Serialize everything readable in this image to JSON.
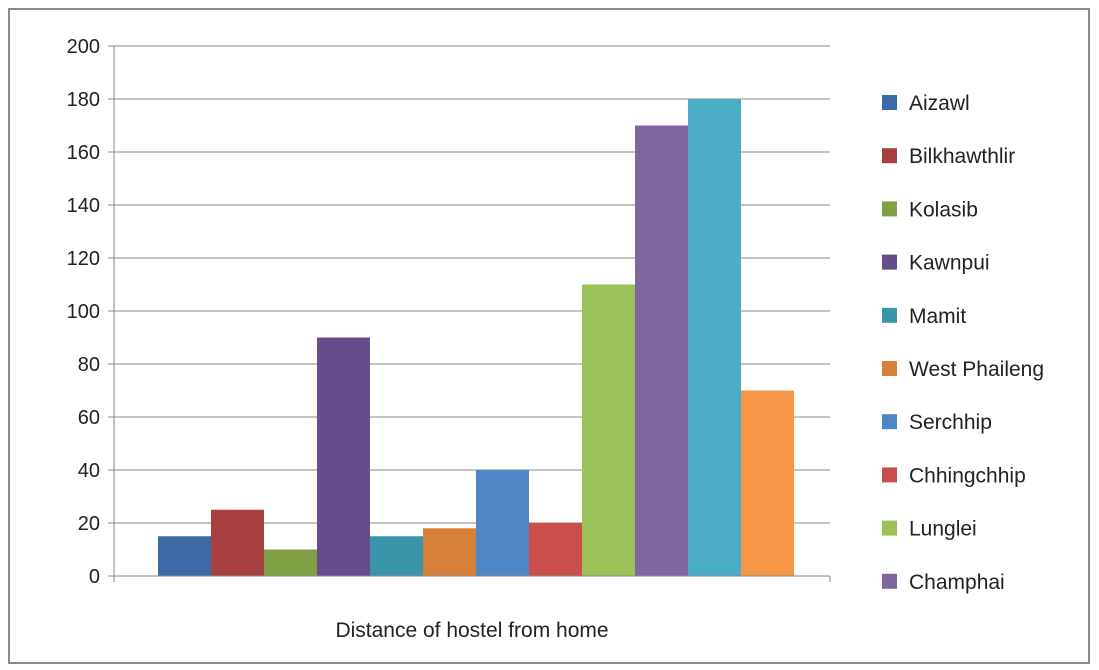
{
  "chart_data": {
    "type": "bar",
    "title": "",
    "xlabel": "Distance of hostel from home",
    "ylabel": "",
    "ylim": [
      0,
      200
    ],
    "yticks": [
      0,
      20,
      40,
      60,
      80,
      100,
      120,
      140,
      160,
      180,
      200
    ],
    "grid": true,
    "legend_position": "right",
    "series": [
      {
        "name": "Aizawl",
        "value": 15,
        "color": "#3c6aa6"
      },
      {
        "name": "Bilkhawthlir",
        "value": 25,
        "color": "#a7403e"
      },
      {
        "name": "Kolasib",
        "value": 10,
        "color": "#7fa045"
      },
      {
        "name": "Kawnpui",
        "value": 90,
        "color": "#674c8d"
      },
      {
        "name": "Mamit",
        "value": 15,
        "color": "#3a95ab"
      },
      {
        "name": "West Phaileng",
        "value": 18,
        "color": "#d6803a"
      },
      {
        "name": "Serchhip",
        "value": 40,
        "color": "#4f86c6"
      },
      {
        "name": "Chhingchhip",
        "value": 20,
        "color": "#cc4e4b"
      },
      {
        "name": "Lunglei",
        "value": 110,
        "color": "#9bc158"
      },
      {
        "name": "Champhai",
        "value": 170,
        "color": "#8065a3"
      },
      {
        "name": "",
        "value": 180,
        "color": "#4bacc6"
      },
      {
        "name": "",
        "value": 70,
        "color": "#f79646"
      }
    ]
  }
}
